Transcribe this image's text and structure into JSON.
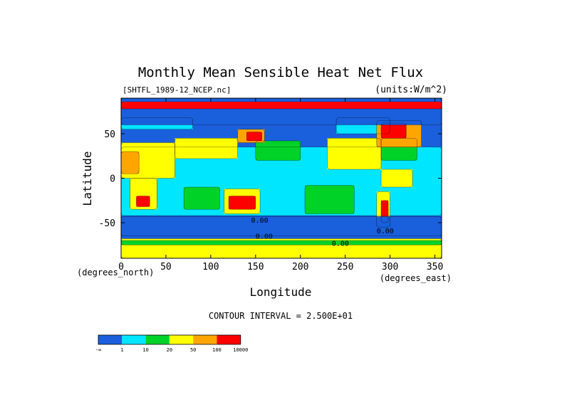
{
  "chart_data": {
    "type": "heatmap",
    "title": "Monthly Mean Sensible Heat Net Flux",
    "subtitle_left": "[SHTFL_1989-12_NCEP.nc]",
    "subtitle_right": "(units:W/m^2)",
    "xlabel": "Longitude",
    "ylabel": "Latitude",
    "x_unit_label": "(degrees_east)",
    "y_unit_label": "(degrees_north)",
    "xlim": [
      0,
      357.5
    ],
    "ylim": [
      -90,
      90
    ],
    "x_ticks": [
      0,
      50,
      100,
      150,
      200,
      250,
      300,
      350
    ],
    "y_ticks": [
      -50,
      0,
      50
    ],
    "contour_interval_text": "CONTOUR INTERVAL = 2.500E+01",
    "colorbar": {
      "labels": [
        "-∞",
        "1",
        "10",
        "20",
        "50",
        "100",
        "10000"
      ],
      "colors": [
        "#1a5fdc",
        "#00e6ff",
        "#00d228",
        "#ffff00",
        "#ffa500",
        "#ff0000"
      ]
    },
    "contour_labels": [
      "0.00",
      "0.00",
      "0.00",
      "0.00"
    ],
    "regions": [
      {
        "level": 0,
        "lon": [
          0,
          357.5
        ],
        "lat": [
          -90,
          90
        ]
      },
      {
        "level": 1,
        "lon": [
          0,
          357.5
        ],
        "lat": [
          -42,
          35
        ]
      },
      {
        "level": 2,
        "lon": [
          70,
          110
        ],
        "lat": [
          -35,
          -10
        ]
      },
      {
        "level": 2,
        "lon": [
          205,
          260
        ],
        "lat": [
          -40,
          -8
        ]
      },
      {
        "level": 2,
        "lon": [
          150,
          200
        ],
        "lat": [
          20,
          42
        ]
      },
      {
        "level": 2,
        "lon": [
          290,
          330
        ],
        "lat": [
          20,
          45
        ]
      },
      {
        "level": 1,
        "lon": [
          0,
          80
        ],
        "lat": [
          55,
          68
        ]
      },
      {
        "level": 3,
        "lon": [
          0,
          60
        ],
        "lat": [
          0,
          40
        ]
      },
      {
        "level": 3,
        "lon": [
          60,
          130
        ],
        "lat": [
          22,
          45
        ]
      },
      {
        "level": 3,
        "lon": [
          230,
          290
        ],
        "lat": [
          10,
          45
        ]
      },
      {
        "level": 1,
        "lon": [
          240,
          300
        ],
        "lat": [
          50,
          68
        ]
      },
      {
        "level": 4,
        "lon": [
          0,
          20
        ],
        "lat": [
          5,
          30
        ]
      },
      {
        "level": 4,
        "lon": [
          130,
          160
        ],
        "lat": [
          40,
          55
        ]
      },
      {
        "level": 5,
        "lon": [
          140,
          157
        ],
        "lat": [
          42,
          52
        ]
      },
      {
        "level": 4,
        "lon": [
          285,
          335
        ],
        "lat": [
          35,
          65
        ]
      },
      {
        "level": 5,
        "lon": [
          290,
          318
        ],
        "lat": [
          45,
          62
        ]
      },
      {
        "level": 3,
        "lon": [
          10,
          40
        ],
        "lat": [
          -35,
          0
        ]
      },
      {
        "level": 5,
        "lon": [
          17,
          32
        ],
        "lat": [
          -32,
          -20
        ]
      },
      {
        "level": 3,
        "lon": [
          115,
          155
        ],
        "lat": [
          -40,
          -12
        ]
      },
      {
        "level": 5,
        "lon": [
          120,
          150
        ],
        "lat": [
          -35,
          -20
        ]
      },
      {
        "level": 3,
        "lon": [
          285,
          300
        ],
        "lat": [
          -55,
          -15
        ]
      },
      {
        "level": 5,
        "lon": [
          290,
          298
        ],
        "lat": [
          -50,
          -25
        ]
      },
      {
        "level": 3,
        "lon": [
          290,
          325
        ],
        "lat": [
          -10,
          10
        ]
      },
      {
        "level": 0,
        "lon": [
          0,
          357.5
        ],
        "lat": [
          -65,
          -43
        ]
      },
      {
        "level": 0,
        "lon": [
          0,
          357.5
        ],
        "lat": [
          60,
          90
        ]
      },
      {
        "level": 5,
        "lon": [
          0,
          357.5
        ],
        "lat": [
          78,
          86
        ]
      },
      {
        "level": 3,
        "lon": [
          0,
          357.5
        ],
        "lat": [
          -90,
          -68
        ]
      },
      {
        "level": 2,
        "lon": [
          0,
          357.5
        ],
        "lat": [
          -75,
          -70
        ]
      }
    ]
  }
}
